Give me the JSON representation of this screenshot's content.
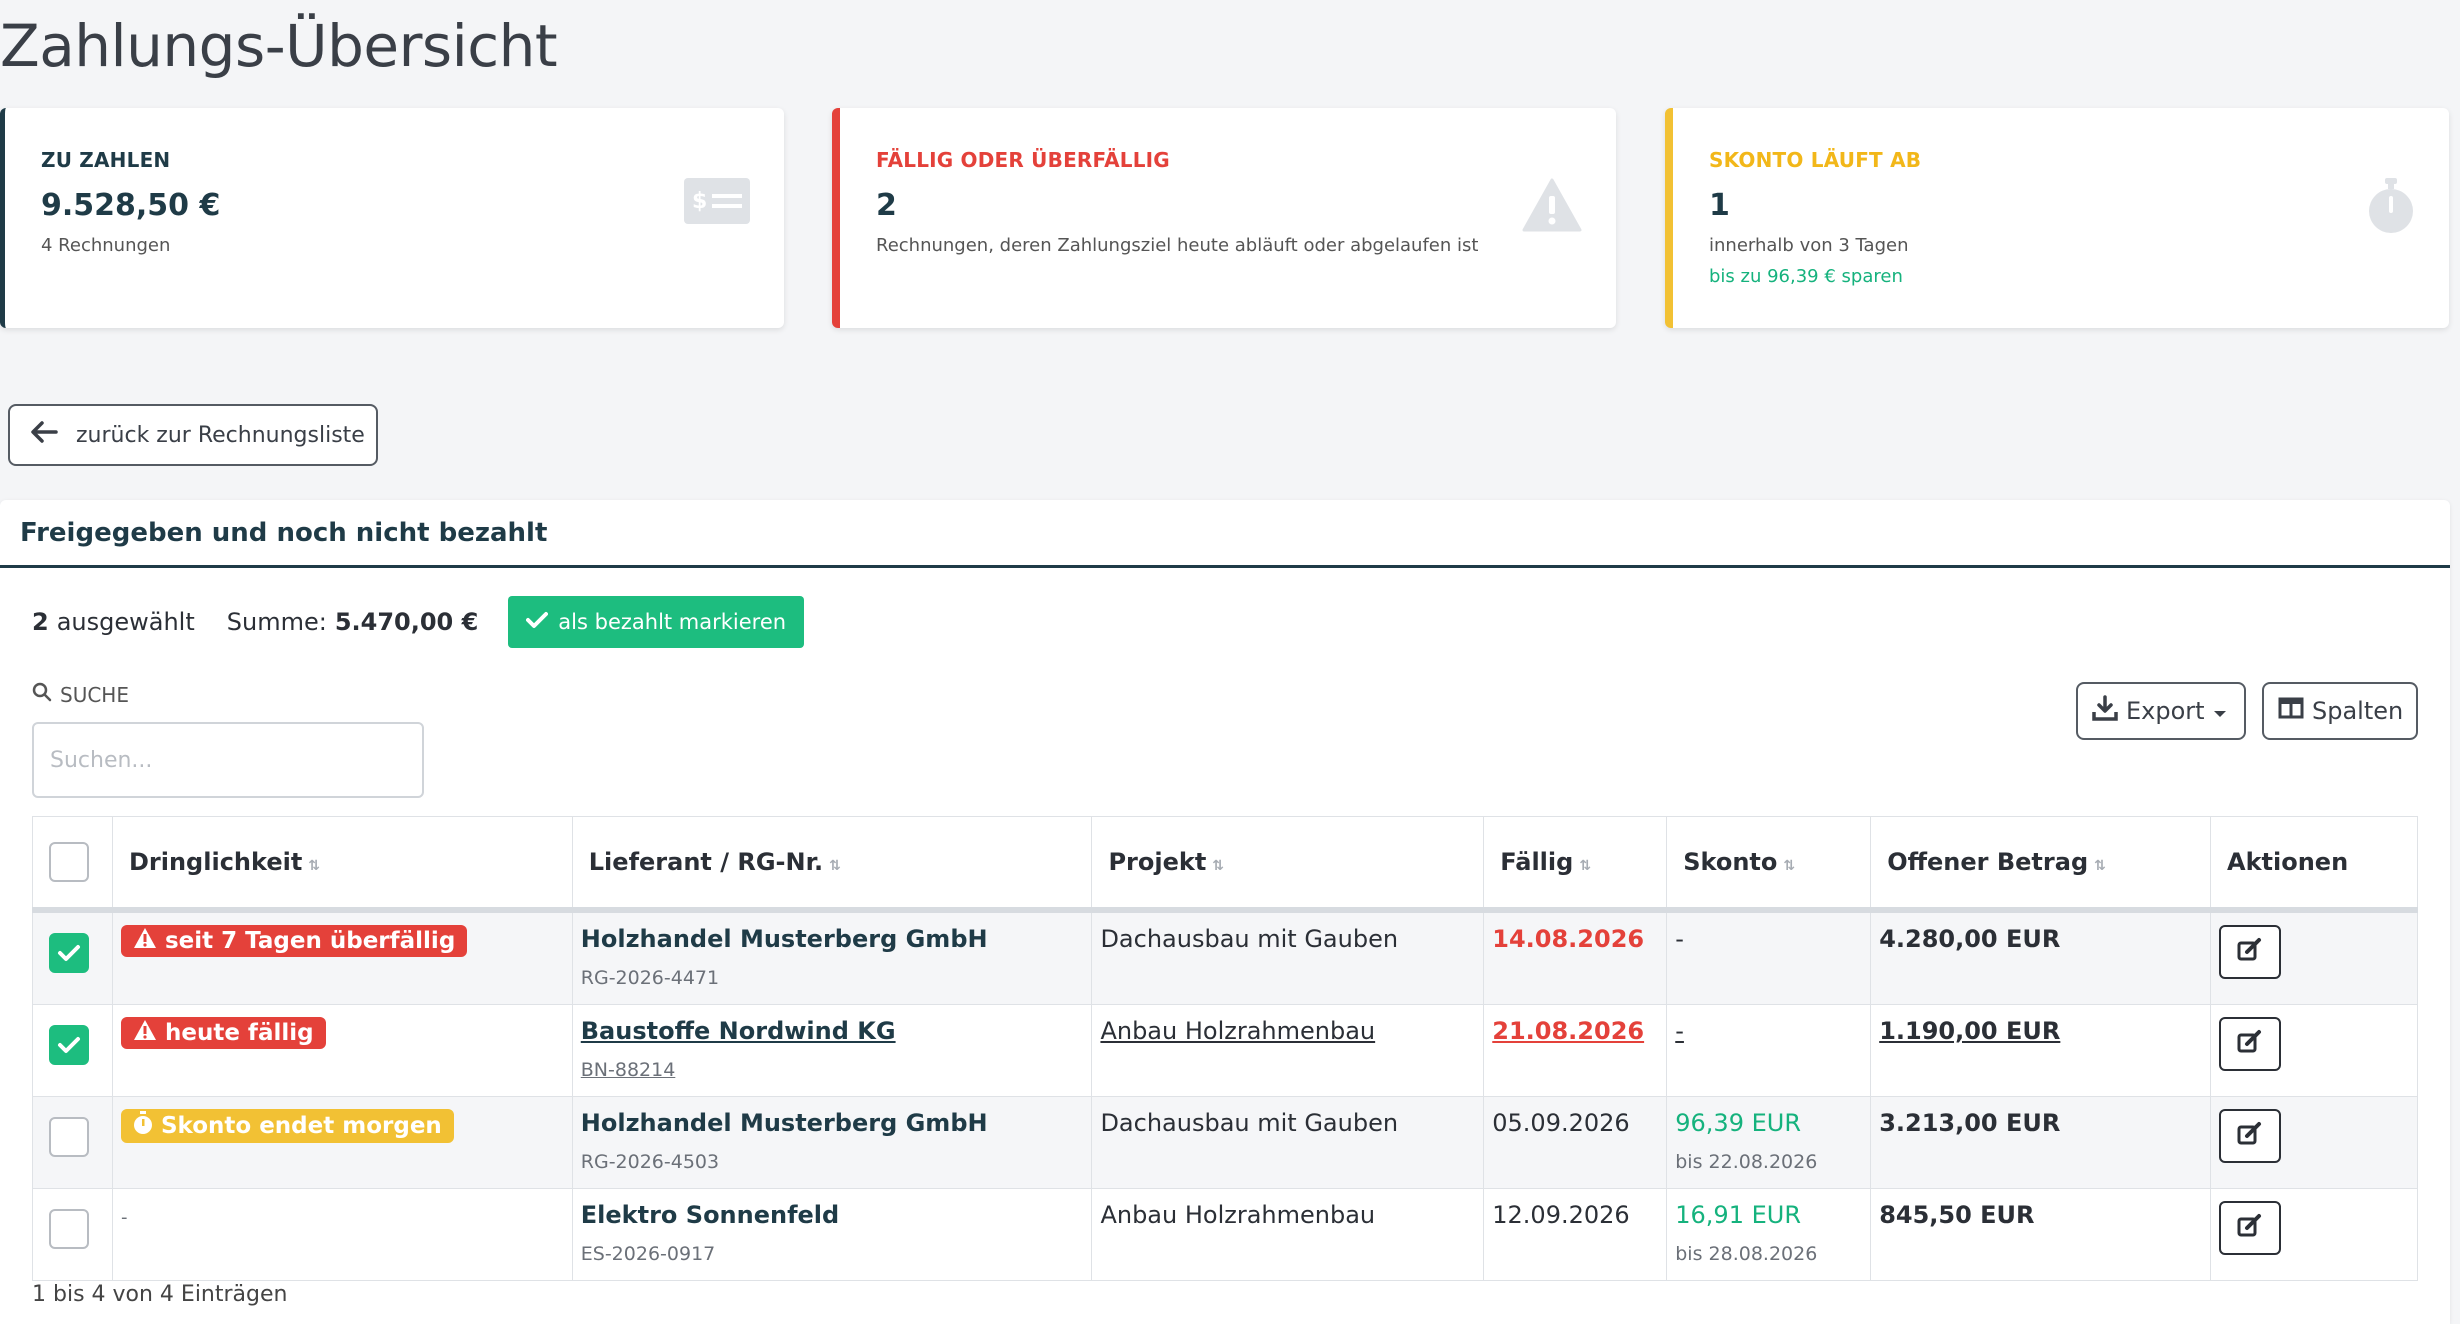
{
  "page": {
    "title": "Zahlungs-Übersicht"
  },
  "cards": [
    {
      "label": "ZU ZAHLEN",
      "value": "9.528,50 €",
      "sub": "4 Rechnungen",
      "extra": "",
      "icon": "money-bill-icon",
      "accent": "#1f3b47"
    },
    {
      "label": "FÄLLIG ODER ÜBERFÄLLIG",
      "value": "2",
      "sub": "Rechnungen, deren Zahlungsziel heute abläuft oder abgelaufen ist",
      "extra": "",
      "icon": "warning-icon",
      "accent": "#e4413a"
    },
    {
      "label": "SKONTO LÄUFT AB",
      "value": "1",
      "sub": "innerhalb von 3 Tagen",
      "extra": "bis zu 96,39 € sparen",
      "icon": "stopwatch-icon",
      "accent": "#f2c134"
    }
  ],
  "back_button": {
    "label": "zurück zur Rechnungsliste"
  },
  "panel": {
    "title": "Freigegeben und noch nicht bezahlt",
    "selected_count": "2",
    "selected_label": "ausgewählt",
    "sum_label": "Summe:",
    "sum_value": "5.470,00 €",
    "mark_paid_label": "als bezahlt markieren",
    "search_label": "SUCHE",
    "search_placeholder": "Suchen...",
    "export_label": "Export",
    "columns_label": "Spalten",
    "footer": "1 bis 4 von 4 Einträgen"
  },
  "table": {
    "headers": [
      "Dringlichkeit",
      "Lieferant / RG-Nr.",
      "Projekt",
      "Fällig",
      "Skonto",
      "Offener Betrag",
      "Aktionen"
    ],
    "rows": [
      {
        "checked": true,
        "badge": "seit 7 Tagen überfällig",
        "badge_type": "red",
        "badge_icon": "warning-icon",
        "supplier": "Holzhandel Musterberg GmbH",
        "rg": "RG-2026-4471",
        "project": "Dachausbau mit Gauben",
        "due": "14.08.2026",
        "due_red": true,
        "skonto": "-",
        "skonto_sub": "",
        "amount": "4.280,00 EUR",
        "underline": false
      },
      {
        "checked": true,
        "badge": "heute fällig",
        "badge_type": "red",
        "badge_icon": "warning-icon",
        "supplier": "Baustoffe Nordwind KG",
        "rg": "BN-88214",
        "project": "Anbau Holzrahmenbau",
        "due": "21.08.2026",
        "due_red": true,
        "skonto": "-",
        "skonto_sub": "",
        "amount": "1.190,00 EUR",
        "underline": true
      },
      {
        "checked": false,
        "badge": "Skonto endet morgen",
        "badge_type": "yellow",
        "badge_icon": "stopwatch-icon",
        "supplier": "Holzhandel Musterberg GmbH",
        "rg": "RG-2026-4503",
        "project": "Dachausbau mit Gauben",
        "due": "05.09.2026",
        "due_red": false,
        "skonto": "96,39 EUR",
        "skonto_sub": "bis 22.08.2026",
        "amount": "3.213,00 EUR",
        "underline": false
      },
      {
        "checked": false,
        "badge": "-",
        "badge_type": "",
        "badge_icon": "",
        "supplier": "Elektro Sonnenfeld",
        "rg": "ES-2026-0917",
        "project": "Anbau Holzrahmenbau",
        "due": "12.09.2026",
        "due_red": false,
        "skonto": "16,91 EUR",
        "skonto_sub": "bis 28.08.2026",
        "amount": "845,50 EUR",
        "underline": false
      }
    ]
  }
}
